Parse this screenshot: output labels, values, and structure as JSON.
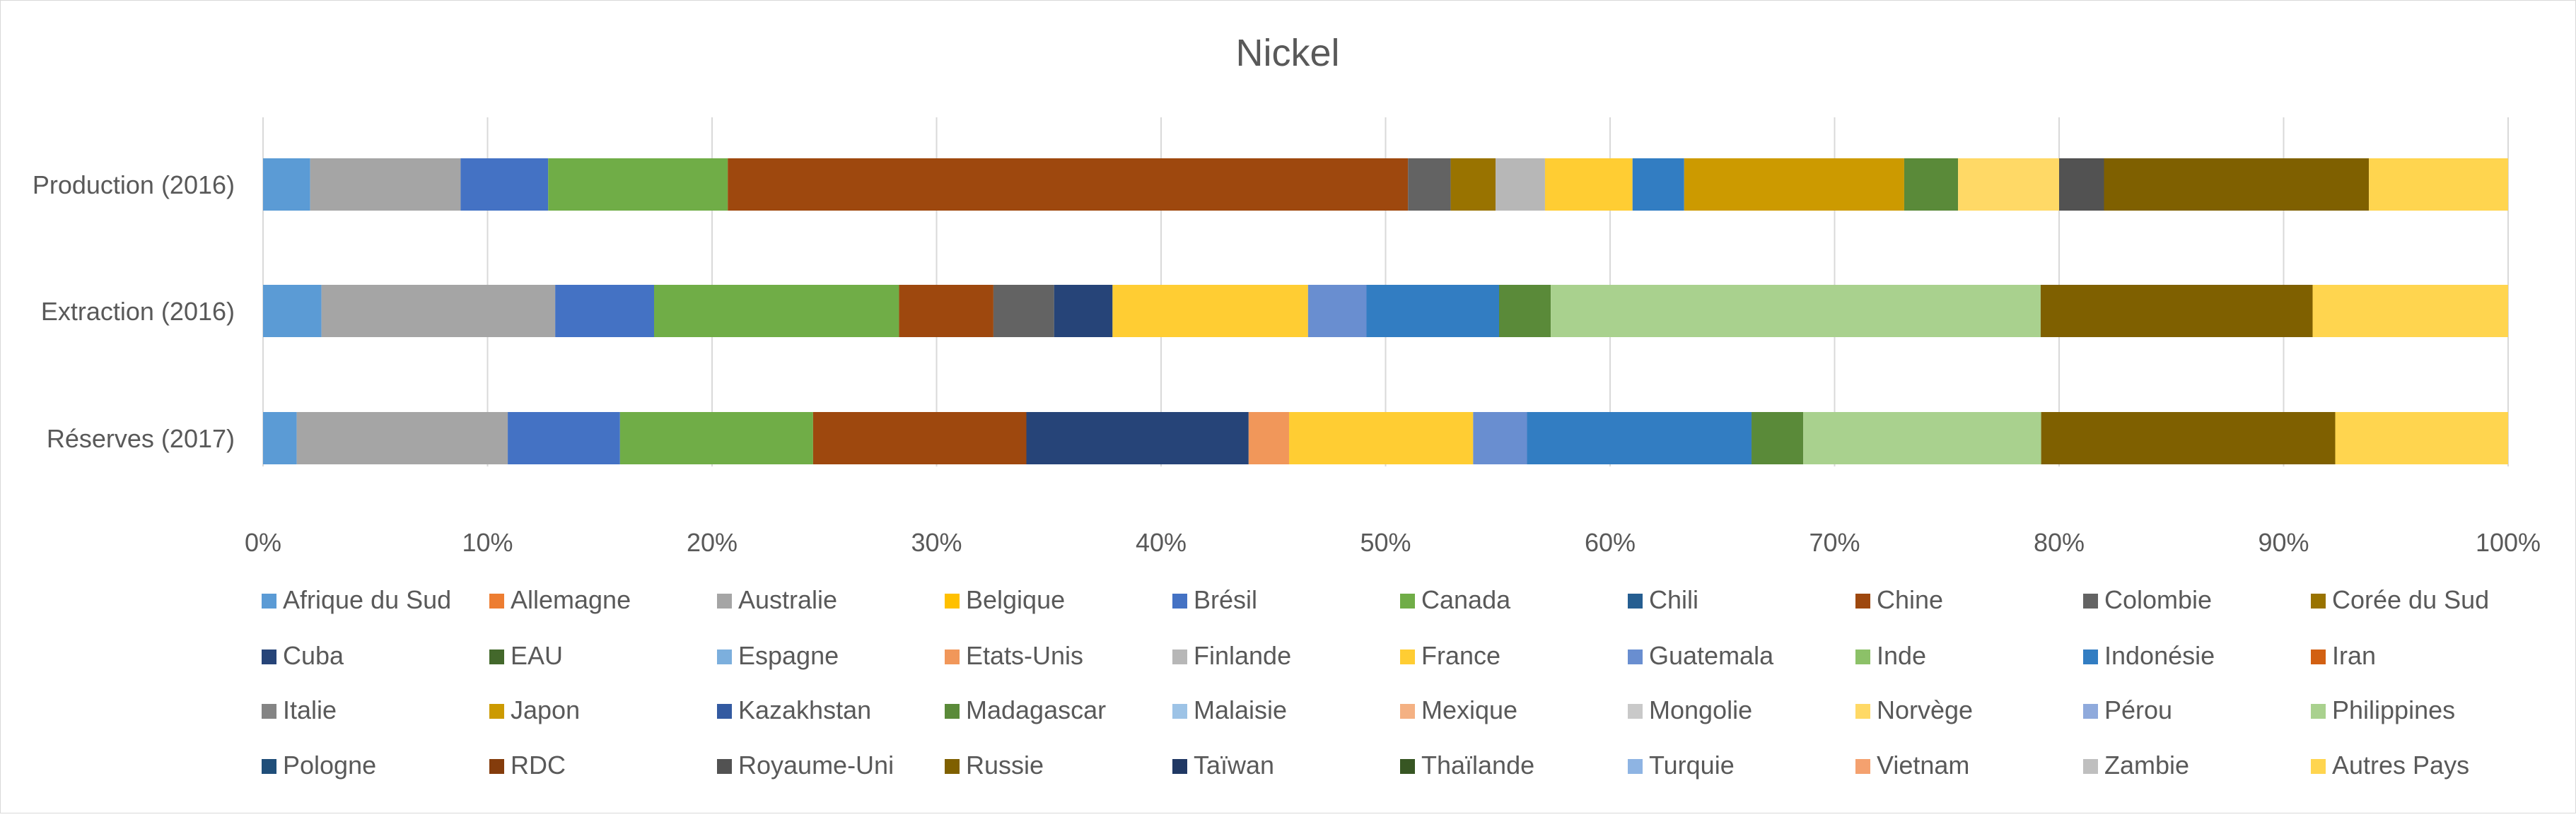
{
  "chart_data": {
    "type": "bar",
    "orientation": "horizontal",
    "stacked": true,
    "percent_stacked": true,
    "title": "Nickel",
    "categories": [
      "Production (2016)",
      "Extraction (2016)",
      "Réserves (2017)"
    ],
    "x_ticks": [
      "0%",
      "10%",
      "20%",
      "30%",
      "40%",
      "50%",
      "60%",
      "70%",
      "80%",
      "90%",
      "100%"
    ],
    "xlim": [
      0,
      100
    ],
    "grid": "vertical",
    "legend_position": "bottom",
    "series": [
      {
        "name": "Afrique du Sud",
        "color": "#5B9BD5",
        "values": [
          2.1,
          2.6,
          1.5
        ]
      },
      {
        "name": "Allemagne",
        "color": "#ED7D31",
        "values": [
          0,
          0,
          0
        ]
      },
      {
        "name": "Australie",
        "color": "#A5A5A5",
        "values": [
          6.7,
          10.4,
          9.4
        ]
      },
      {
        "name": "Belgique",
        "color": "#FFC000",
        "values": [
          0,
          0,
          0
        ]
      },
      {
        "name": "Brésil",
        "color": "#4472C4",
        "values": [
          3.9,
          4.4,
          5.0
        ]
      },
      {
        "name": "Canada",
        "color": "#70AD47",
        "values": [
          8.0,
          10.9,
          8.6
        ]
      },
      {
        "name": "Chili",
        "color": "#255E91",
        "values": [
          0,
          0,
          0
        ]
      },
      {
        "name": "Chine",
        "color": "#9E480E",
        "values": [
          30.3,
          4.2,
          9.5
        ]
      },
      {
        "name": "Colombie",
        "color": "#636363",
        "values": [
          1.9,
          2.7,
          0
        ]
      },
      {
        "name": "Corée du Sud",
        "color": "#997300",
        "values": [
          2.0,
          0,
          0
        ]
      },
      {
        "name": "Cuba",
        "color": "#264478",
        "values": [
          0,
          2.6,
          9.9
        ]
      },
      {
        "name": "EAU",
        "color": "#43682B",
        "values": [
          0,
          0,
          0
        ]
      },
      {
        "name": "Espagne",
        "color": "#7CAFDD",
        "values": [
          0,
          0,
          0
        ]
      },
      {
        "name": "Etats-Unis",
        "color": "#F1975A",
        "values": [
          0,
          0,
          1.8
        ]
      },
      {
        "name": "Finlande",
        "color": "#B7B7B7",
        "values": [
          2.2,
          0,
          0
        ]
      },
      {
        "name": "France",
        "color": "#FFCD33",
        "values": [
          3.9,
          8.7,
          8.2
        ]
      },
      {
        "name": "Guatemala",
        "color": "#698ED0",
        "values": [
          0,
          2.6,
          2.4
        ]
      },
      {
        "name": "Inde",
        "color": "#8CC168",
        "values": [
          0,
          0,
          0
        ]
      },
      {
        "name": "Indonésie",
        "color": "#327DC2",
        "values": [
          2.3,
          5.9,
          10.0
        ]
      },
      {
        "name": "Iran",
        "color": "#D26012",
        "values": [
          0,
          0,
          0
        ]
      },
      {
        "name": "Italie",
        "color": "#848484",
        "values": [
          0,
          0,
          0
        ]
      },
      {
        "name": "Japon",
        "color": "#CC9A00",
        "values": [
          9.8,
          0,
          0
        ]
      },
      {
        "name": "Kazakhstan",
        "color": "#335AA1",
        "values": [
          0,
          0,
          0
        ]
      },
      {
        "name": "Madagascar",
        "color": "#5A8A39",
        "values": [
          2.4,
          2.3,
          2.3
        ]
      },
      {
        "name": "Malaisie",
        "color": "#9DC3E6",
        "values": [
          0,
          0,
          0
        ]
      },
      {
        "name": "Mexique",
        "color": "#F4B183",
        "values": [
          0,
          0,
          0
        ]
      },
      {
        "name": "Mongolie",
        "color": "#C9C9C9",
        "values": [
          0,
          0,
          0
        ]
      },
      {
        "name": "Norvège",
        "color": "#FFD966",
        "values": [
          4.5,
          0,
          0
        ]
      },
      {
        "name": "Pérou",
        "color": "#8FAADC",
        "values": [
          0,
          0,
          0
        ]
      },
      {
        "name": "Philippines",
        "color": "#A9D18E",
        "values": [
          0,
          21.8,
          10.6
        ]
      },
      {
        "name": "Pologne",
        "color": "#1F4E79",
        "values": [
          0,
          0,
          0
        ]
      },
      {
        "name": "RDC",
        "color": "#843C0C",
        "values": [
          0,
          0,
          0
        ]
      },
      {
        "name": "Royaume-Uni",
        "color": "#525252",
        "values": [
          2.0,
          0,
          0
        ]
      },
      {
        "name": "Russie",
        "color": "#7F6000",
        "values": [
          11.8,
          12.1,
          13.1
        ]
      },
      {
        "name": "Taïwan",
        "color": "#203864",
        "values": [
          0,
          0,
          0
        ]
      },
      {
        "name": "Thaïlande",
        "color": "#375623",
        "values": [
          0,
          0,
          0
        ]
      },
      {
        "name": "Turquie",
        "color": "#8EB4E3",
        "values": [
          0,
          0,
          0
        ]
      },
      {
        "name": "Vietnam",
        "color": "#F4A16F",
        "values": [
          0,
          0,
          0
        ]
      },
      {
        "name": "Zambie",
        "color": "#BFBFBF",
        "values": [
          0,
          0,
          0
        ]
      },
      {
        "name": "Autres Pays",
        "color": "#FFD54F",
        "values": [
          6.2,
          8.7,
          7.7
        ]
      }
    ]
  }
}
